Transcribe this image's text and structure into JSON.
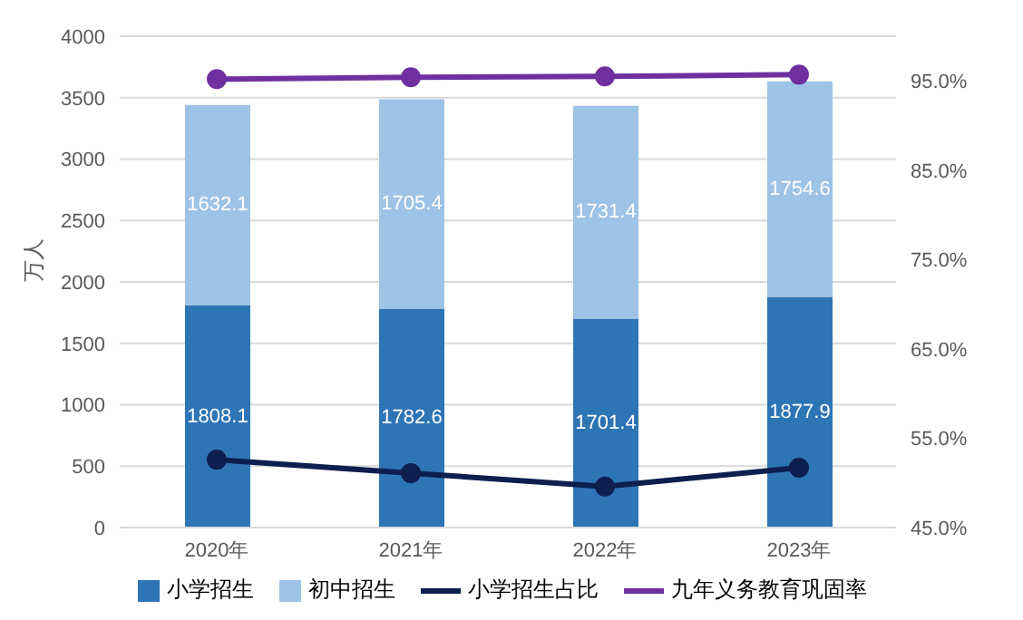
{
  "chart_data": {
    "type": "bar",
    "stacked": true,
    "ylabel": "万人",
    "categories": [
      "2020年",
      "2021年",
      "2022年",
      "2023年"
    ],
    "series": [
      {
        "name": "小学招生",
        "color": "#2e75b6",
        "values": [
          1808.1,
          1782.6,
          1701.4,
          1877.9
        ],
        "value_labels": [
          "1808.1",
          "1782.6",
          "1701.4",
          "1877.9"
        ]
      },
      {
        "name": "初中招生",
        "color": "#9dc3e6",
        "values": [
          1632.1,
          1705.4,
          1731.4,
          1754.6
        ],
        "value_labels": [
          "1632.1",
          "1705.4",
          "1731.4",
          "1754.6"
        ]
      },
      {
        "name": "小学招生占比",
        "type": "line",
        "axis": "y2",
        "color": "#0d1f4f",
        "values": [
          52.6,
          51.1,
          49.6,
          51.7
        ]
      },
      {
        "name": "九年义务教育巩固率",
        "type": "line",
        "axis": "y2",
        "color": "#7030a0",
        "values": [
          95.2,
          95.4,
          95.5,
          95.7
        ]
      }
    ],
    "ylim": [
      0,
      4000
    ],
    "yticks": [
      0,
      500,
      1000,
      1500,
      2000,
      2500,
      3000,
      3500,
      4000
    ],
    "y2lim": [
      45,
      100
    ],
    "y2ticks": [
      {
        "value": 45,
        "label": "45.0%"
      },
      {
        "value": 55,
        "label": "55.0%"
      },
      {
        "value": 65,
        "label": "65.0%"
      },
      {
        "value": 75,
        "label": "75.0%"
      },
      {
        "value": 85,
        "label": "85.0%"
      },
      {
        "value": 95,
        "label": "95.0%"
      }
    ],
    "grid": "y",
    "legend": "bottom",
    "marker": "circle"
  }
}
